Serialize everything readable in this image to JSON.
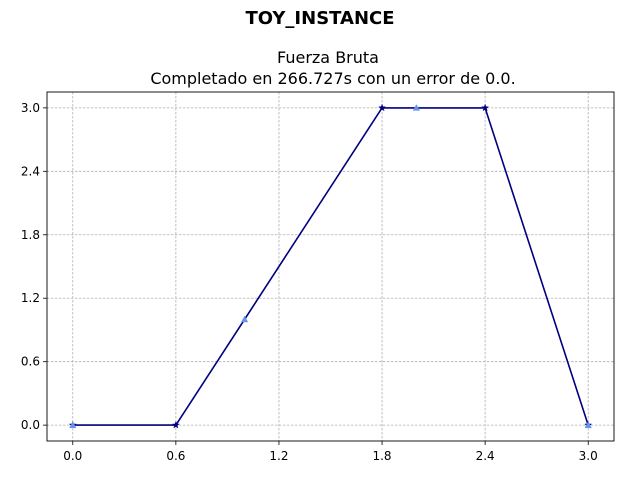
{
  "chart_data": {
    "type": "line",
    "suptitle": "TOY_INSTANCE",
    "title": "Fuerza Bruta",
    "subtitle": "Completado en 266.727s con un error de 0.0.",
    "xlabel": "",
    "ylabel": "",
    "xlim": [
      -0.15,
      3.15
    ],
    "ylim": [
      -0.15,
      3.15
    ],
    "xticks": [
      0.0,
      0.6,
      1.2,
      1.8,
      2.4,
      3.0
    ],
    "xtick_labels": [
      "0.0",
      "0.6",
      "1.2",
      "1.8",
      "2.4",
      "3.0"
    ],
    "yticks": [
      0.0,
      0.6,
      1.2,
      1.8,
      2.4,
      3.0
    ],
    "ytick_labels": [
      "0.0",
      "0.6",
      "1.2",
      "1.8",
      "2.4",
      "3.0"
    ],
    "grid": true,
    "series": [
      {
        "x": [
          0.0,
          0.6,
          1.8,
          2.4,
          3.0
        ],
        "y": [
          0.0,
          0.0,
          3.0,
          3.0,
          0.0
        ],
        "color": "#000080",
        "marker": "star"
      },
      {
        "x": [
          0.0,
          1.0,
          2.0,
          3.0
        ],
        "y": [
          0.0,
          1.0,
          3.0,
          0.0
        ],
        "color": "#6495ed",
        "marker": "triangle"
      }
    ]
  }
}
